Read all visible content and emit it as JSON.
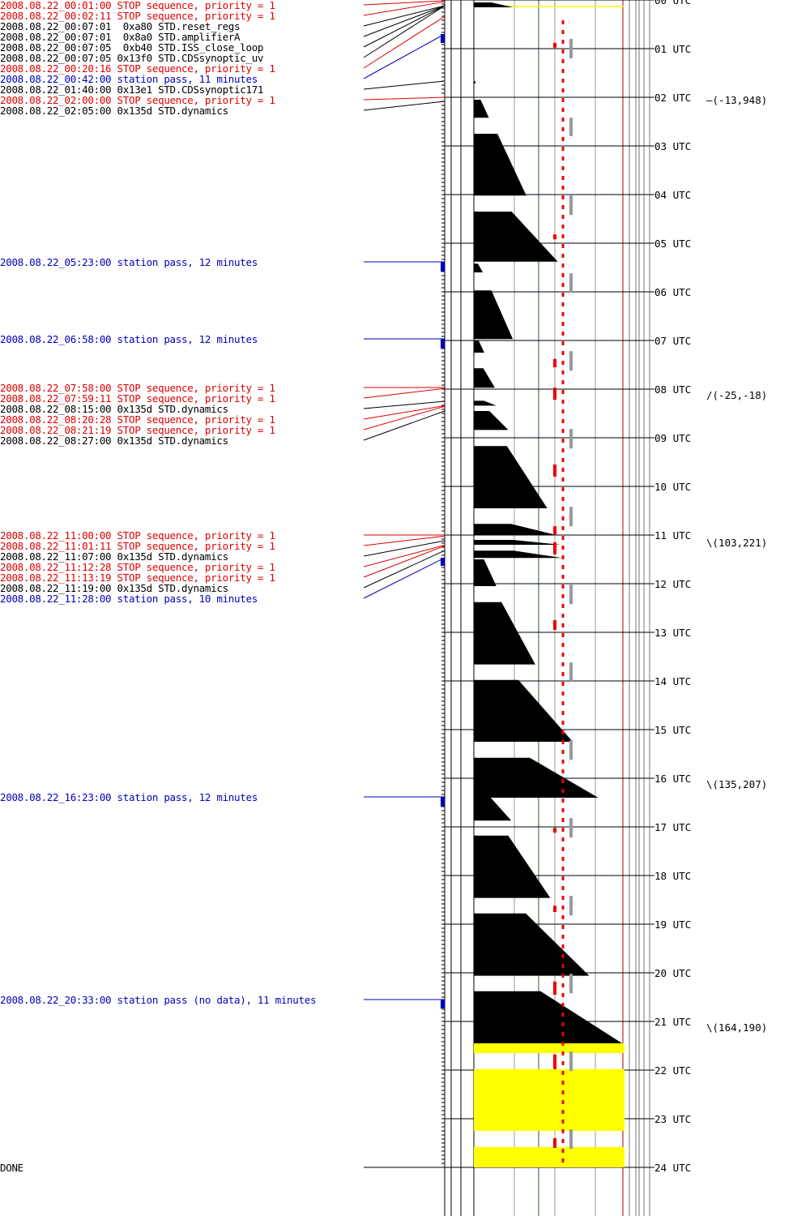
{
  "colors": {
    "command": "#000000",
    "stop": "#dd0000",
    "station_pass": "#0000bb",
    "no_data_fill": "#ffff00",
    "marker_red": "#ee0000",
    "marker_gray": "#999999",
    "grid_green": "#226622"
  },
  "events": [
    {
      "text": "2008.08.22_00:01:00 STOP sequence, priority = 1",
      "kind": "stop",
      "time": 0.0167
    },
    {
      "text": "2008.08.22_00:02:11 STOP sequence, priority = 1",
      "kind": "stop",
      "time": 0.0364
    },
    {
      "text": "2008.08.22_00:07:01  0xa80 STD.reset_regs",
      "kind": "command",
      "time": 0.117
    },
    {
      "text": "2008.08.22_00:07:01  0x8a0 STD.amplifierA",
      "kind": "command",
      "time": 0.117
    },
    {
      "text": "2008.08.22_00:07:05  0xb40 STD.ISS_close_loop",
      "kind": "command",
      "time": 0.118
    },
    {
      "text": "2008.08.22_00:07:05 0x13f0 STD.CDSsynoptic_uv",
      "kind": "command",
      "time": 0.118
    },
    {
      "text": "2008.08.22_00:20:16 STOP sequence, priority = 1",
      "kind": "stop",
      "time": 0.338
    },
    {
      "text": "2008.08.22_00:42:00 station pass, 11 minutes",
      "kind": "station_pass",
      "time": 0.7
    },
    {
      "text": "2008.08.22_01:40:00 0x13e1 STD.CDSsynoptic171",
      "kind": "command",
      "time": 1.667
    },
    {
      "text": "2008.08.22_02:00:00 STOP sequence, priority = 1",
      "kind": "stop",
      "time": 2.0
    },
    {
      "text": "2008.08.22_02:05:00 0x135d STD.dynamics",
      "kind": "command",
      "time": 2.083
    },
    {
      "text": "2008.08.22_05:23:00 station pass, 12 minutes",
      "kind": "station_pass",
      "time": 5.383
    },
    {
      "text": "2008.08.22_06:58:00 station pass, 12 minutes",
      "kind": "station_pass",
      "time": 6.967
    },
    {
      "text": "2008.08.22_07:58:00 STOP sequence, priority = 1",
      "kind": "stop",
      "time": 7.967
    },
    {
      "text": "2008.08.22_07:59:11 STOP sequence, priority = 1",
      "kind": "stop",
      "time": 7.986
    },
    {
      "text": "2008.08.22_08:15:00 0x135d STD.dynamics",
      "kind": "command",
      "time": 8.25
    },
    {
      "text": "2008.08.22_08:20:28 STOP sequence, priority = 1",
      "kind": "stop",
      "time": 8.341
    },
    {
      "text": "2008.08.22_08:21:19 STOP sequence, priority = 1",
      "kind": "stop",
      "time": 8.355
    },
    {
      "text": "2008.08.22_08:27:00 0x135d STD.dynamics",
      "kind": "command",
      "time": 8.45
    },
    {
      "text": "2008.08.22_11:00:00 STOP sequence, priority = 1",
      "kind": "stop",
      "time": 11.0
    },
    {
      "text": "2008.08.22_11:01:11 STOP sequence, priority = 1",
      "kind": "stop",
      "time": 11.02
    },
    {
      "text": "2008.08.22_11:07:00 0x135d STD.dynamics",
      "kind": "command",
      "time": 11.117
    },
    {
      "text": "2008.08.22_11:12:28 STOP sequence, priority = 1",
      "kind": "stop",
      "time": 11.208
    },
    {
      "text": "2008.08.22_11:13:19 STOP sequence, priority = 1",
      "kind": "stop",
      "time": 11.222
    },
    {
      "text": "2008.08.22_11:19:00 0x135d STD.dynamics",
      "kind": "command",
      "time": 11.317
    },
    {
      "text": "2008.08.22_11:28:00 station pass, 10 minutes",
      "kind": "station_pass",
      "time": 11.467
    },
    {
      "text": "2008.08.22_16:23:00 station pass, 12 minutes",
      "kind": "station_pass",
      "time": 16.383
    },
    {
      "text": "2008.08.22_20:33:00 station pass (no data), 11 minutes",
      "kind": "station_pass",
      "time": 20.55
    },
    {
      "text": "DONE",
      "kind": "command",
      "time": 24.0
    }
  ],
  "hours": [
    "00 UTC",
    "01 UTC",
    "02 UTC",
    "03 UTC",
    "04 UTC",
    "05 UTC",
    "06 UTC",
    "07 UTC",
    "08 UTC",
    "09 UTC",
    "10 UTC",
    "11 UTC",
    "12 UTC",
    "13 UTC",
    "14 UTC",
    "15 UTC",
    "16 UTC",
    "17 UTC",
    "18 UTC",
    "19 UTC",
    "20 UTC",
    "21 UTC",
    "22 UTC",
    "23 UTC",
    "24 UTC"
  ],
  "positions": [
    {
      "text": "(-13,948)",
      "time": 2.05,
      "tick": "—"
    },
    {
      "text": "(-25,-18)",
      "time": 8.12,
      "tick": "/"
    },
    {
      "text": "(103,221)",
      "time": 11.15,
      "tick": "\\"
    },
    {
      "text": "(135,207)",
      "time": 16.12,
      "tick": "\\"
    },
    {
      "text": "(164,190)",
      "time": 21.12,
      "tick": "\\"
    }
  ],
  "station_passes": [
    {
      "start": 0.7,
      "minutes": 11
    },
    {
      "start": 5.383,
      "minutes": 12
    },
    {
      "start": 6.967,
      "minutes": 12
    },
    {
      "start": 11.467,
      "minutes": 10
    },
    {
      "start": 16.383,
      "minutes": 12
    },
    {
      "start": 20.55,
      "minutes": 11
    }
  ],
  "data_blocks": [
    {
      "start": 0.05,
      "end": 0.15,
      "max_frac": 0.26
    },
    {
      "start": 1.67,
      "end": 1.72,
      "max_frac": 0.01
    },
    {
      "start": 2.05,
      "end": 2.42,
      "max_frac": 0.1
    },
    {
      "start": 2.75,
      "end": 4.02,
      "max_frac": 0.35
    },
    {
      "start": 4.35,
      "end": 5.38,
      "max_frac": 0.56
    },
    {
      "start": 5.42,
      "end": 5.6,
      "max_frac": 0.06
    },
    {
      "start": 5.97,
      "end": 6.97,
      "max_frac": 0.26
    },
    {
      "start": 7.0,
      "end": 7.25,
      "max_frac": 0.07
    },
    {
      "start": 7.57,
      "end": 7.97,
      "max_frac": 0.14
    },
    {
      "start": 8.24,
      "end": 8.34,
      "max_frac": 0.15
    },
    {
      "start": 8.45,
      "end": 8.84,
      "max_frac": 0.23
    },
    {
      "start": 9.17,
      "end": 10.45,
      "max_frac": 0.49
    },
    {
      "start": 10.77,
      "end": 11.0,
      "max_frac": 0.55
    },
    {
      "start": 11.1,
      "end": 11.2,
      "max_frac": 0.58
    },
    {
      "start": 11.32,
      "end": 11.47,
      "max_frac": 0.59
    },
    {
      "start": 11.5,
      "end": 12.05,
      "max_frac": 0.15
    },
    {
      "start": 12.38,
      "end": 13.66,
      "max_frac": 0.41
    },
    {
      "start": 13.98,
      "end": 15.25,
      "max_frac": 0.66
    },
    {
      "start": 15.58,
      "end": 16.4,
      "max_frac": 0.83
    },
    {
      "start": 16.4,
      "end": 16.87,
      "max_frac": 0.25
    },
    {
      "start": 17.18,
      "end": 18.46,
      "max_frac": 0.51
    },
    {
      "start": 18.78,
      "end": 20.06,
      "max_frac": 0.77
    },
    {
      "start": 20.38,
      "end": 21.45,
      "max_frac": 0.99
    }
  ],
  "nodata_blocks": [
    {
      "start": 0.0,
      "end": 0.05,
      "line_only": true
    },
    {
      "start": 21.45,
      "end": 21.65
    },
    {
      "start": 21.98,
      "end": 23.25
    },
    {
      "start": 23.58,
      "end": 24.0
    }
  ],
  "red_markers": [
    {
      "start": 0.88,
      "end": 0.98
    },
    {
      "start": 4.82,
      "end": 4.92
    },
    {
      "start": 7.38,
      "end": 7.55
    },
    {
      "start": 7.97,
      "end": 8.22
    },
    {
      "start": 9.55,
      "end": 9.8
    },
    {
      "start": 10.82,
      "end": 11.0
    },
    {
      "start": 11.15,
      "end": 11.4
    },
    {
      "start": 12.75,
      "end": 12.95
    },
    {
      "start": 17.02,
      "end": 17.12
    },
    {
      "start": 18.62,
      "end": 18.75
    },
    {
      "start": 20.18,
      "end": 20.45
    },
    {
      "start": 21.68,
      "end": 21.98
    },
    {
      "start": 23.4,
      "end": 23.6
    }
  ],
  "gray_markers": [
    {
      "start": 0.8,
      "end": 1.2
    },
    {
      "start": 2.42,
      "end": 2.8
    },
    {
      "start": 4.02,
      "end": 4.42
    },
    {
      "start": 5.62,
      "end": 6.02
    },
    {
      "start": 7.22,
      "end": 7.62
    },
    {
      "start": 8.82,
      "end": 9.22
    },
    {
      "start": 10.42,
      "end": 10.82
    },
    {
      "start": 12.02,
      "end": 12.42
    },
    {
      "start": 13.62,
      "end": 14.02
    },
    {
      "start": 15.22,
      "end": 15.62
    },
    {
      "start": 16.82,
      "end": 17.22
    },
    {
      "start": 18.42,
      "end": 18.82
    },
    {
      "start": 20.02,
      "end": 20.42
    },
    {
      "start": 21.62,
      "end": 22.02
    },
    {
      "start": 23.22,
      "end": 23.62
    }
  ]
}
